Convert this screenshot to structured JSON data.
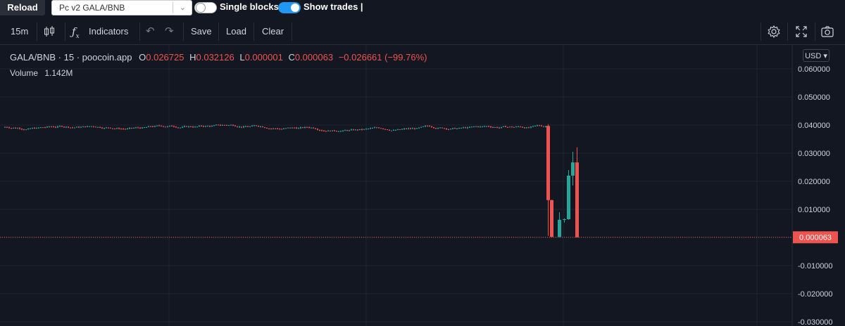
{
  "top": {
    "reload_label": "Reload",
    "pair_value": "Pc v2 GALA/BNB",
    "single_blocks_label": "Single blocks",
    "show_trades_label": "Show trades |"
  },
  "toolbar": {
    "interval": "15m",
    "indicators_label": "Indicators",
    "save_label": "Save",
    "load_label": "Load",
    "clear_label": "Clear"
  },
  "legend": {
    "symbol": "GALA/BNB",
    "interval": "15",
    "source": "poocoin.app",
    "open_key": "O",
    "open": "0.026725",
    "high_key": "H",
    "high": "0.032126",
    "low_key": "L",
    "low": "0.000001",
    "close_key": "C",
    "close": "0.000063",
    "change": "−0.026661 (−99.76%)",
    "volume_label": "Volume",
    "volume_value": "1.142M"
  },
  "currency_badge": "USD",
  "colors": {
    "up": "#26a69a",
    "down": "#ef5350",
    "bg": "#131722",
    "grid": "#1f2330"
  },
  "chart_data": {
    "type": "candlestick",
    "ylim": [
      -0.03,
      0.065
    ],
    "yticks": [
      "0.060000",
      "0.050000",
      "0.040000",
      "0.030000",
      "0.020000",
      "0.010000",
      "",
      "-0.010000",
      "-0.020000",
      "-0.030000"
    ],
    "ytick_values": [
      0.06,
      0.05,
      0.04,
      0.03,
      0.02,
      0.01,
      0.0,
      -0.01,
      -0.02,
      -0.03
    ],
    "last_price": 6.3e-05,
    "last_price_label": "0.000063",
    "baseline_price": 0.0393,
    "candles": [
      {
        "o": 0.0397,
        "h": 0.0403,
        "l": 0.0006,
        "c": 0.0133
      },
      {
        "o": 0.0133,
        "h": 0.0134,
        "l": 0.0001,
        "c": 0.0002
      },
      {
        "o": 0.0002,
        "h": 0.009,
        "l": 0.0001,
        "c": 0.0063
      },
      {
        "o": 0.0063,
        "h": 0.0068,
        "l": 0.0053,
        "c": 0.0065
      },
      {
        "o": 0.0065,
        "h": 0.024,
        "l": 0.0063,
        "c": 0.022
      },
      {
        "o": 0.022,
        "h": 0.0305,
        "l": 0.0185,
        "c": 0.0267
      },
      {
        "o": 0.0267,
        "h": 0.0321,
        "l": 1e-06,
        "c": 6.3e-05
      }
    ]
  }
}
